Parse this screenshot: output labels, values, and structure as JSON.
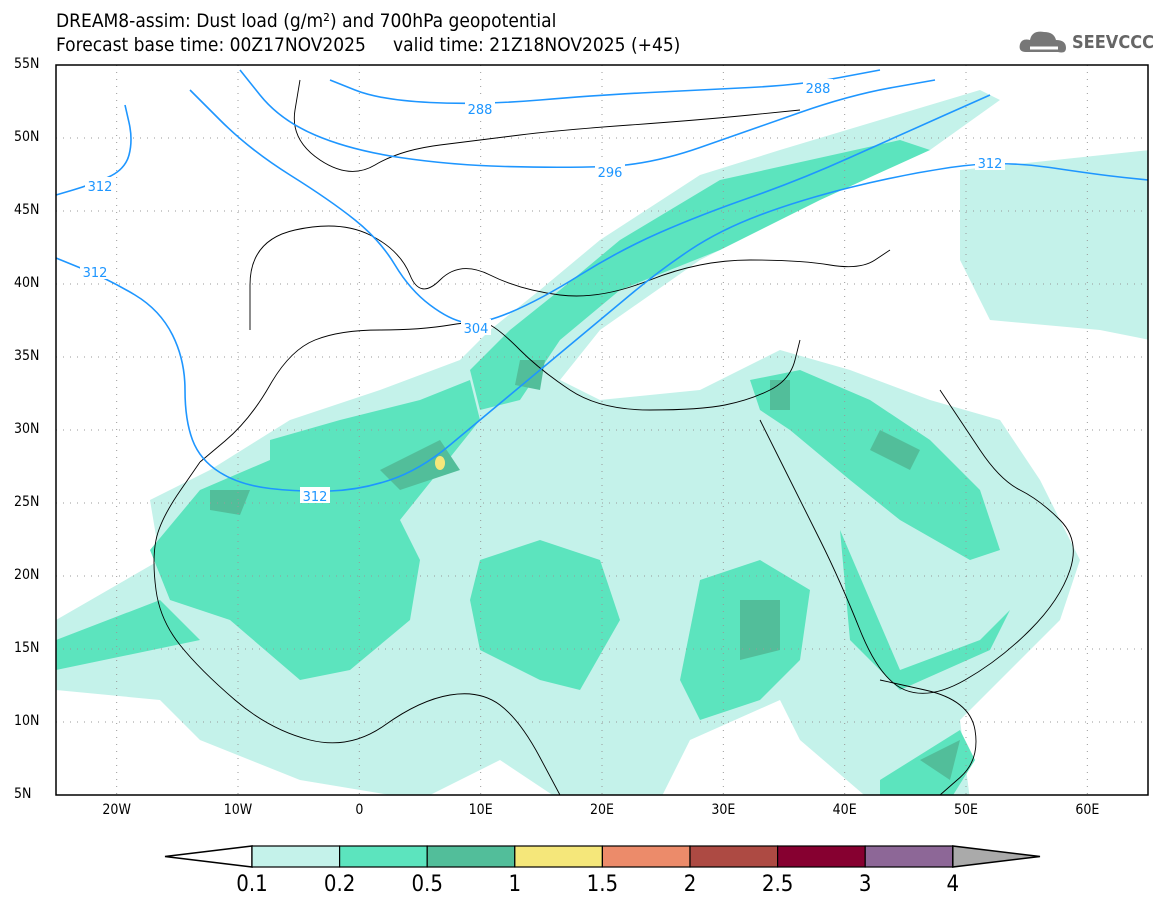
{
  "header": {
    "title": "DREAM8-assim: Dust load (g/m²) and 700hPa geopotential",
    "subtitle": "Forecast base time: 00Z17NOV2025     valid time: 21Z18NOV2025 (+45)",
    "logo": "SEEVCCC"
  },
  "chart_data": {
    "type": "map",
    "title": "DREAM8-assim: Dust load (g/m²) and 700hPa geopotential",
    "lon_range": [
      -25,
      65
    ],
    "lat_range": [
      5,
      55
    ],
    "lat_ticks": [
      "55N",
      "50N",
      "45N",
      "40N",
      "35N",
      "30N",
      "25N",
      "20N",
      "15N",
      "10N",
      "5N"
    ],
    "lon_ticks": [
      "20W",
      "10W",
      "0",
      "10E",
      "20E",
      "30E",
      "40E",
      "50E",
      "60E"
    ],
    "contour_labels": [
      "288",
      "288",
      "296",
      "304",
      "312",
      "312",
      "312",
      "312"
    ],
    "legend": {
      "levels": [
        "0.1",
        "0.2",
        "0.5",
        "1",
        "1.5",
        "2",
        "2.5",
        "3",
        "4"
      ],
      "colors": [
        "#c4f2ea",
        "#5ce4be",
        "#52be9a",
        "#f5e77a",
        "#ec8b6a",
        "#ad4a43",
        "#860030",
        "#8d6797"
      ],
      "over_color": "#aaaaaa",
      "under_color": "#ffffff"
    },
    "contour_color": "#1e96ff"
  }
}
